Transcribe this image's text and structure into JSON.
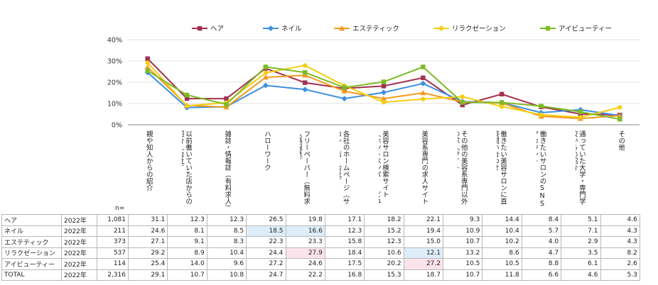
{
  "chart_data": {
    "type": "line",
    "ylim": [
      0,
      40
    ],
    "yticks": [
      "0%",
      "10%",
      "20%",
      "30%",
      "40%"
    ],
    "categories": [
      "親や知人からの紹介",
      "以前働いていた店からの紹介（会社）",
      "雑誌・情報誌（有料求人）",
      "ハローワーク",
      "フリーペーパー（無料求人情報誌）",
      "各社のホームページ（サロン・店・会社）",
      "美容サロン検索サイト（ホットペッパー・ビューティーなど）",
      "美容系専門の求人サイト",
      "その他の美容系専門以外の求人サイト",
      "働きたい美容サロンに直接問い合わせ",
      "働きたいサロンのSNSアカウント",
      "通っていた大学・専門学校からの紹介",
      "その他"
    ],
    "series": [
      {
        "name": "ヘア",
        "color": "#a3304f",
        "marker": "square",
        "values": [
          31.1,
          12.3,
          12.3,
          26.5,
          19.8,
          17.1,
          18.2,
          22.1,
          9.3,
          14.4,
          8.4,
          5.1,
          4.6
        ]
      },
      {
        "name": "ネイル",
        "color": "#3c8fe0",
        "marker": "diamond",
        "values": [
          24.6,
          8.1,
          8.5,
          18.5,
          16.6,
          12.3,
          15.2,
          19.4,
          10.9,
          10.4,
          5.7,
          7.1,
          4.3
        ]
      },
      {
        "name": "エステティック",
        "color": "#f29a1c",
        "marker": "triangle",
        "values": [
          27.1,
          9.1,
          8.3,
          22.3,
          23.3,
          15.8,
          12.3,
          15.0,
          10.7,
          10.2,
          4.0,
          2.9,
          4.3
        ]
      },
      {
        "name": "リラクゼーション",
        "color": "#f5cd14",
        "marker": "circle",
        "values": [
          29.2,
          8.9,
          10.4,
          24.4,
          27.9,
          18.4,
          10.6,
          12.1,
          13.2,
          8.6,
          4.7,
          3.5,
          8.2
        ]
      },
      {
        "name": "アイビューティー",
        "color": "#7dbb24",
        "marker": "square",
        "values": [
          25.4,
          14.0,
          9.6,
          27.2,
          24.6,
          17.5,
          20.2,
          27.2,
          10.5,
          10.5,
          8.8,
          6.1,
          2.6
        ]
      }
    ],
    "table": {
      "n_label": "n=",
      "rows": [
        {
          "label": "ヘア",
          "year": "2022年",
          "n": "1,081",
          "cells": [
            "31.1",
            "12.3",
            "12.3",
            "26.5",
            "19.8",
            "17.1",
            "18.2",
            "22.1",
            "9.3",
            "14.4",
            "8.4",
            "5.1",
            "4.6"
          ],
          "hl": [
            "",
            "",
            "",
            "",
            "",
            "",
            "",
            "",
            "",
            "",
            "",
            "",
            ""
          ]
        },
        {
          "label": "ネイル",
          "year": "2022年",
          "n": "211",
          "cells": [
            "24.6",
            "8.1",
            "8.5",
            "18.5",
            "16.6",
            "12.3",
            "15.2",
            "19.4",
            "10.9",
            "10.4",
            "5.7",
            "7.1",
            "4.3"
          ],
          "hl": [
            "",
            "",
            "",
            "blue",
            "blue",
            "",
            "",
            "",
            "",
            "",
            "",
            "",
            ""
          ]
        },
        {
          "label": "エステティック",
          "year": "2022年",
          "n": "373",
          "cells": [
            "27.1",
            "9.1",
            "8.3",
            "22.3",
            "23.3",
            "15.8",
            "12.3",
            "15.0",
            "10.7",
            "10.2",
            "4.0",
            "2.9",
            "4.3"
          ],
          "hl": [
            "",
            "",
            "",
            "",
            "",
            "",
            "",
            "",
            "",
            "",
            "",
            "",
            ""
          ]
        },
        {
          "label": "リラクゼーション",
          "year": "2022年",
          "n": "537",
          "cells": [
            "29.2",
            "8.9",
            "10.4",
            "24.4",
            "27.9",
            "18.4",
            "10.6",
            "12.1",
            "13.2",
            "8.6",
            "4.7",
            "3.5",
            "8.2"
          ],
          "hl": [
            "",
            "",
            "",
            "",
            "pink",
            "",
            "",
            "blue",
            "",
            "",
            "",
            "",
            ""
          ]
        },
        {
          "label": "アイビューティー",
          "year": "2022年",
          "n": "114",
          "cells": [
            "25.4",
            "14.0",
            "9.6",
            "27.2",
            "24.6",
            "17.5",
            "20.2",
            "27.2",
            "10.5",
            "10.5",
            "8.8",
            "6.1",
            "2.6"
          ],
          "hl": [
            "",
            "",
            "",
            "",
            "",
            "",
            "",
            "pink",
            "",
            "",
            "",
            "",
            ""
          ]
        },
        {
          "label": "TOTAL",
          "year": "2022年",
          "n": "2,316",
          "cells": [
            "29.1",
            "10.7",
            "10.8",
            "24.7",
            "22.2",
            "16.8",
            "15.3",
            "18.7",
            "10.7",
            "11.8",
            "6.6",
            "4.6",
            "5.3"
          ],
          "hl": [
            "",
            "",
            "",
            "",
            "",
            "",
            "",
            "",
            "",
            "",
            "",
            "",
            ""
          ]
        }
      ]
    }
  }
}
